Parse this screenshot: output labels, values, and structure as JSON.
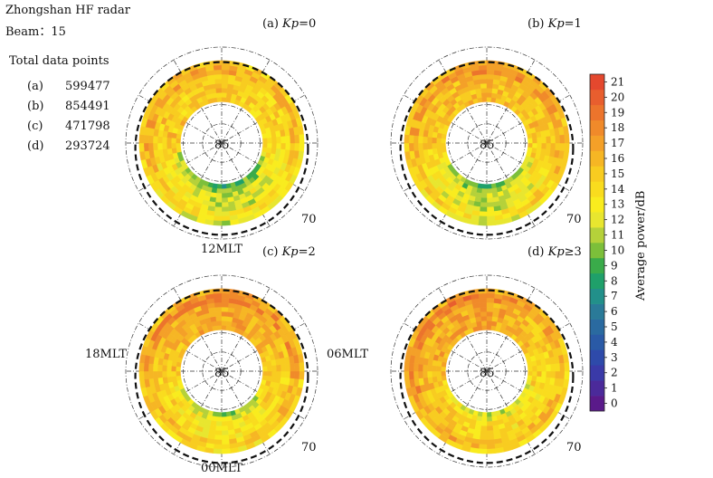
{
  "header": {
    "radar": "Zhongshan HF radar",
    "beam": "Beam：15",
    "totals_title": "Total data points",
    "totals": [
      {
        "label": "(a)",
        "value": "599477"
      },
      {
        "label": "(b)",
        "value": "854491"
      },
      {
        "label": "(c)",
        "value": "471798"
      },
      {
        "label": "(d)",
        "value": "293724"
      }
    ]
  },
  "mlt_labels": {
    "top": "12MLT",
    "bottom": "00MLT",
    "left": "18MLT",
    "right": "06MLT"
  },
  "colorbar": {
    "label": "Average power/dB",
    "ticks": [
      "0",
      "1",
      "2",
      "3",
      "4",
      "5",
      "6",
      "7",
      "8",
      "9",
      "10",
      "11",
      "12",
      "13",
      "14",
      "15",
      "16",
      "17",
      "18",
      "19",
      "20",
      "21"
    ],
    "colors": [
      "#5a1a8a",
      "#4b2a9a",
      "#3a3aa8",
      "#2e4aaa",
      "#2a5aa6",
      "#2a6aa0",
      "#2a7a98",
      "#22908a",
      "#1fa06a",
      "#3aab4a",
      "#7cbf3a",
      "#b5d13a",
      "#e8e62f",
      "#f9ec1e",
      "#f9dc1e",
      "#f8cc20",
      "#f6b624",
      "#f4a028",
      "#f08a2a",
      "#ec742c",
      "#e85e2e",
      "#e4482e"
    ],
    "range": [
      0,
      21
    ]
  },
  "chart_data": [
    {
      "type": "heatmap",
      "panel": "(a) Kp=0",
      "label_prefix": "(a) ",
      "kp": "Kp",
      "kp_value": "=0",
      "center_label": "85",
      "outer_label": "70",
      "typical_power": {
        "dayside": 15,
        "dawn": 14,
        "dusk": 15,
        "nightside": 11
      },
      "color_range": [
        0,
        21
      ]
    },
    {
      "type": "heatmap",
      "panel": "(b) Kp=1",
      "label_prefix": "(b) ",
      "kp": "Kp",
      "kp_value": "=1",
      "center_label": "85",
      "outer_label": "70",
      "typical_power": {
        "dayside": 16,
        "dawn": 15,
        "dusk": 15,
        "nightside": 11
      },
      "color_range": [
        0,
        21
      ]
    },
    {
      "type": "heatmap",
      "panel": "(c) Kp=2",
      "label_prefix": "(c) ",
      "kp": "Kp",
      "kp_value": "=2",
      "center_label": "85",
      "outer_label": "70",
      "typical_power": {
        "dayside": 17,
        "dawn": 15,
        "dusk": 15,
        "nightside": 13
      },
      "color_range": [
        0,
        21
      ]
    },
    {
      "type": "heatmap",
      "panel": "(d) Kp≥3",
      "label_prefix": "(d) ",
      "kp": "Kp",
      "kp_value": "≥3",
      "center_label": "85",
      "outer_label": "70",
      "typical_power": {
        "dayside": 17,
        "dawn": 14,
        "dusk": 16,
        "nightside": 14
      },
      "color_range": [
        0,
        21
      ]
    }
  ]
}
